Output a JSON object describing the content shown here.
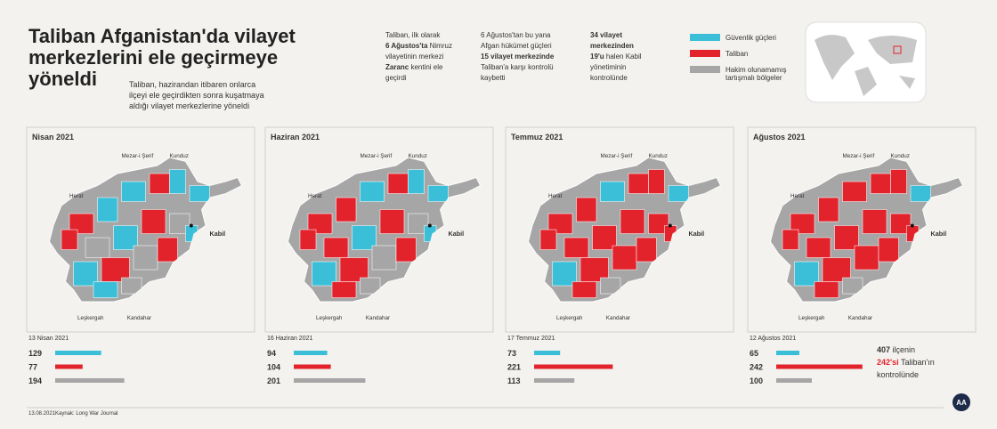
{
  "header": {
    "title": [
      "Taliban Afganistan'da vilayet",
      "merkezlerini ele geçirmeye",
      "yöneldi"
    ],
    "subtitle": [
      "Taliban, hazirandan itibaren onlarca",
      "ilçeyi ele geçirdikten sonra kuşatmaya",
      "aldığı vilayet merkezlerine yöneldi"
    ]
  },
  "notes": [
    [
      [
        {
          "text": "Taliban, ilk olarak",
          "bold": false
        }
      ],
      [
        {
          "text": "6 Ağustos'ta",
          "bold": true
        },
        {
          "text": " Nimruz",
          "bold": false
        }
      ],
      [
        {
          "text": "vilayetinin merkezi",
          "bold": false
        }
      ],
      [
        {
          "text": "Zaranc",
          "bold": true
        },
        {
          "text": " kentini ele",
          "bold": false
        }
      ],
      [
        {
          "text": "geçirdi",
          "bold": false
        }
      ]
    ],
    [
      [
        {
          "text": "6 Ağustos'tan bu yana",
          "bold": false
        }
      ],
      [
        {
          "text": "Afgan hükümet güçleri",
          "bold": false
        }
      ],
      [
        {
          "text": "15 vilayet merkezinde",
          "bold": true
        }
      ],
      [
        {
          "text": "Taliban'a karşı kontrolü",
          "bold": false
        }
      ],
      [
        {
          "text": "kaybetti",
          "bold": false
        }
      ]
    ],
    [
      [
        {
          "text": "34 vilayet",
          "bold": true
        }
      ],
      [
        {
          "text": "merkezinden",
          "bold": true
        }
      ],
      [
        {
          "text": "19'u",
          "bold": true
        },
        {
          "text": " halen Kabil",
          "bold": false
        }
      ],
      [
        {
          "text": "yönetiminin",
          "bold": false
        }
      ],
      [
        {
          "text": "kontrolünde",
          "bold": false
        }
      ]
    ]
  ],
  "legend": [
    {
      "name": [
        "Güvenlik güçleri"
      ],
      "color": "#3bbfd8"
    },
    {
      "name": [
        "Taliban"
      ],
      "color": "#e3232c"
    },
    {
      "name": [
        "Hakim olunamamış",
        "tartışmalı bölgeler"
      ],
      "color": "#a6a6a6"
    }
  ],
  "map_labels": {
    "herat": "Herat",
    "mezar": "Mezar-i Şerif",
    "kunduz": "Kunduz",
    "kabil": "Kabil",
    "leskergah": "Leşkergah",
    "kandahar": "Kandahar"
  },
  "chart_data": [
    {
      "type": "bar",
      "orientation": "horizontal",
      "title": "Nisan 2021",
      "date": "13 Nisan 2021",
      "values": [
        129,
        77,
        194
      ],
      "colors": [
        "#3bbfd8",
        "#e3232c",
        "#a6a6a6"
      ]
    },
    {
      "type": "bar",
      "orientation": "horizontal",
      "title": "Haziran 2021",
      "date": "16 Haziran 2021",
      "values": [
        94,
        104,
        201
      ],
      "colors": [
        "#3bbfd8",
        "#e3232c",
        "#a6a6a6"
      ]
    },
    {
      "type": "bar",
      "orientation": "horizontal",
      "title": "Temmuz 2021",
      "date": "17 Temmuz 2021",
      "values": [
        73,
        221,
        113
      ],
      "colors": [
        "#3bbfd8",
        "#e3232c",
        "#a6a6a6"
      ]
    },
    {
      "type": "bar",
      "orientation": "horizontal",
      "title": "Ağustos 2021",
      "date": "12 Ağustos 2021",
      "values": [
        65,
        242,
        100
      ],
      "colors": [
        "#3bbfd8",
        "#e3232c",
        "#a6a6a6"
      ]
    }
  ],
  "summary": [
    [
      {
        "text": "407",
        "bold": true
      },
      {
        "text": " ilçenin",
        "bold": false
      }
    ],
    [
      {
        "text": "242'si",
        "bold": true,
        "red": true
      },
      {
        "text": " Taliban'ın",
        "bold": false
      }
    ],
    [
      {
        "text": "kontrolünde",
        "bold": false
      }
    ]
  ],
  "footer": {
    "date": "13.08.2021",
    "source": "Kaynak: Long War Journal",
    "logo": "AA"
  }
}
